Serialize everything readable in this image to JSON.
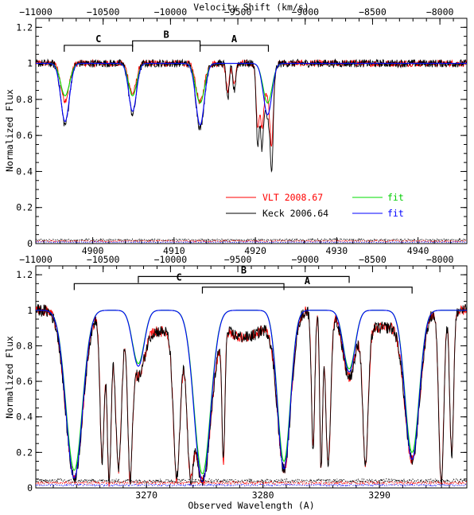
{
  "figure": {
    "top_axis_title": "Velocity Shift (km/s)",
    "bottom_axis_title": "Observed Wavelength (A)",
    "y_axis_title": "Normalized Flux"
  },
  "colors": {
    "vlt": "#ff0000",
    "keck": "#000000",
    "fit_green": "#00dd00",
    "fit_blue": "#0000ff",
    "axes": "#000000"
  },
  "legend": {
    "vlt_label": "VLT 2008.67",
    "keck_label": "Keck 2006.64",
    "fit_green_label": "fit",
    "fit_blue_label": "fit"
  },
  "chart_data": [
    {
      "type": "line",
      "panel": "top",
      "xlabel_top": "Velocity Shift (km/s)",
      "ylabel": "Normalized Flux",
      "xlim": [
        4893,
        4946
      ],
      "xlim_velocity": [
        -11000,
        -7800
      ],
      "ylim": [
        0,
        1.25
      ],
      "x_ticks": [
        4900,
        4910,
        4920,
        4930,
        4940
      ],
      "top_ticks": [
        -11000,
        -10500,
        -10000,
        -9500,
        -9000,
        -8500,
        -8000
      ],
      "y_ticks": [
        0,
        0.2,
        0.4,
        0.6,
        0.8,
        1,
        1.2
      ],
      "brackets": [
        {
          "label": "C",
          "x_start": 4896.5,
          "x_end": 4904.9,
          "level": 1.1
        },
        {
          "label": "B",
          "x_start": 4904.9,
          "x_end": 4913.2,
          "level": 1.125
        },
        {
          "label": "A",
          "x_start": 4913.2,
          "x_end": 4921.6,
          "level": 1.1
        }
      ],
      "absorption_lines": [
        {
          "center": 4896.6,
          "fit_depth": 0.18,
          "data_depth": 0.34,
          "width": 0.55
        },
        {
          "center": 4904.9,
          "fit_depth": 0.18,
          "data_depth": 0.28,
          "width": 0.5
        },
        {
          "center": 4913.2,
          "fit_depth": 0.22,
          "data_depth": 0.36,
          "width": 0.55
        },
        {
          "center": 4921.5,
          "fit_depth": 0.22,
          "data_depth": 0.3,
          "width": 0.55
        }
      ],
      "narrow_lines": [
        {
          "center": 4916.6,
          "depth": 0.2
        },
        {
          "center": 4917.4,
          "depth": 0.15
        },
        {
          "center": 4920.3,
          "depth": 0.46
        },
        {
          "center": 4920.8,
          "depth": 0.4
        },
        {
          "center": 4922.0,
          "depth": 0.52
        }
      ],
      "series": [
        {
          "name": "VLT 2008.67",
          "kind": "data"
        },
        {
          "name": "Keck 2006.64",
          "kind": "data"
        },
        {
          "name": "fit",
          "kind": "model"
        },
        {
          "name": "fit",
          "kind": "model"
        }
      ],
      "error_level": 0.02
    },
    {
      "type": "line",
      "panel": "bottom",
      "xlabel": "Observed Wavelength (A)",
      "ylabel": "Normalized Flux",
      "xlim": [
        3260.5,
        3297.5
      ],
      "xlim_velocity": [
        -11000,
        -7800
      ],
      "ylim": [
        0,
        1.25
      ],
      "x_ticks": [
        3270,
        3280,
        3290
      ],
      "top_ticks": [
        -11000,
        -10500,
        -10000,
        -9500,
        -9000,
        -8500,
        -8000
      ],
      "y_ticks": [
        0,
        0.2,
        0.4,
        0.6,
        0.8,
        1,
        1.2
      ],
      "brackets": [
        {
          "label": "C",
          "x_start": 3263.8,
          "x_end": 3281.8,
          "level": 1.15
        },
        {
          "label": "B",
          "x_start": 3269.3,
          "x_end": 3287.4,
          "level": 1.19
        },
        {
          "label": "A",
          "x_start": 3274.8,
          "x_end": 3292.8,
          "level": 1.13
        }
      ],
      "absorption_lines": [
        {
          "center": 3263.8,
          "fit_depth": 0.9,
          "width": 0.7
        },
        {
          "center": 3269.3,
          "fit_depth": 0.3,
          "width": 0.5
        },
        {
          "center": 3274.8,
          "fit_depth": 0.92,
          "width": 0.7
        },
        {
          "center": 3281.8,
          "fit_depth": 0.85,
          "width": 0.55
        },
        {
          "center": 3287.4,
          "fit_depth": 0.33,
          "width": 0.5
        },
        {
          "center": 3292.8,
          "fit_depth": 0.8,
          "width": 0.6
        }
      ],
      "error_level": 0.04
    }
  ]
}
